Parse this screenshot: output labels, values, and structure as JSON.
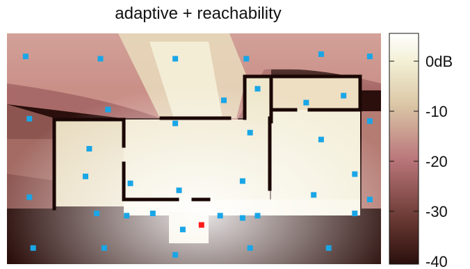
{
  "chart_data": {
    "type": "heatmap",
    "title": "adaptive + reachability",
    "colorbar": {
      "ticks": [
        "0dB",
        "-10",
        "-20",
        "-30",
        "-40"
      ],
      "range": [
        -40,
        0
      ],
      "colors": [
        "#2a0f0c",
        "#6b3a34",
        "#b9757a",
        "#dcc9a8",
        "#f3f0d6",
        "#ffffff"
      ]
    },
    "marker_colors": {
      "sensor": "#1aa6e6",
      "source": "#ff1a1a"
    },
    "sensors": [
      [
        0.05,
        0.9
      ],
      [
        0.25,
        0.89
      ],
      [
        0.45,
        0.89
      ],
      [
        0.64,
        0.89
      ],
      [
        0.84,
        0.91
      ],
      [
        0.97,
        0.9
      ],
      [
        0.06,
        0.63
      ],
      [
        0.27,
        0.67
      ],
      [
        0.58,
        0.71
      ],
      [
        0.67,
        0.76
      ],
      [
        0.8,
        0.7
      ],
      [
        0.9,
        0.73
      ],
      [
        0.22,
        0.5
      ],
      [
        0.45,
        0.61
      ],
      [
        0.65,
        0.57
      ],
      [
        0.84,
        0.54
      ],
      [
        0.97,
        0.62
      ],
      [
        0.21,
        0.38
      ],
      [
        0.33,
        0.35
      ],
      [
        0.46,
        0.32
      ],
      [
        0.63,
        0.36
      ],
      [
        0.82,
        0.3
      ],
      [
        0.93,
        0.39
      ],
      [
        0.06,
        0.29
      ],
      [
        0.24,
        0.22
      ],
      [
        0.32,
        0.21
      ],
      [
        0.39,
        0.22
      ],
      [
        0.57,
        0.21
      ],
      [
        0.63,
        0.2
      ],
      [
        0.67,
        0.21
      ],
      [
        0.93,
        0.22
      ],
      [
        0.97,
        0.28
      ],
      [
        0.47,
        0.15
      ],
      [
        0.07,
        0.07
      ],
      [
        0.26,
        0.07
      ],
      [
        0.45,
        0.04
      ],
      [
        0.65,
        0.07
      ],
      [
        0.86,
        0.07
      ]
    ],
    "source": [
      0.52,
      0.17
    ]
  }
}
